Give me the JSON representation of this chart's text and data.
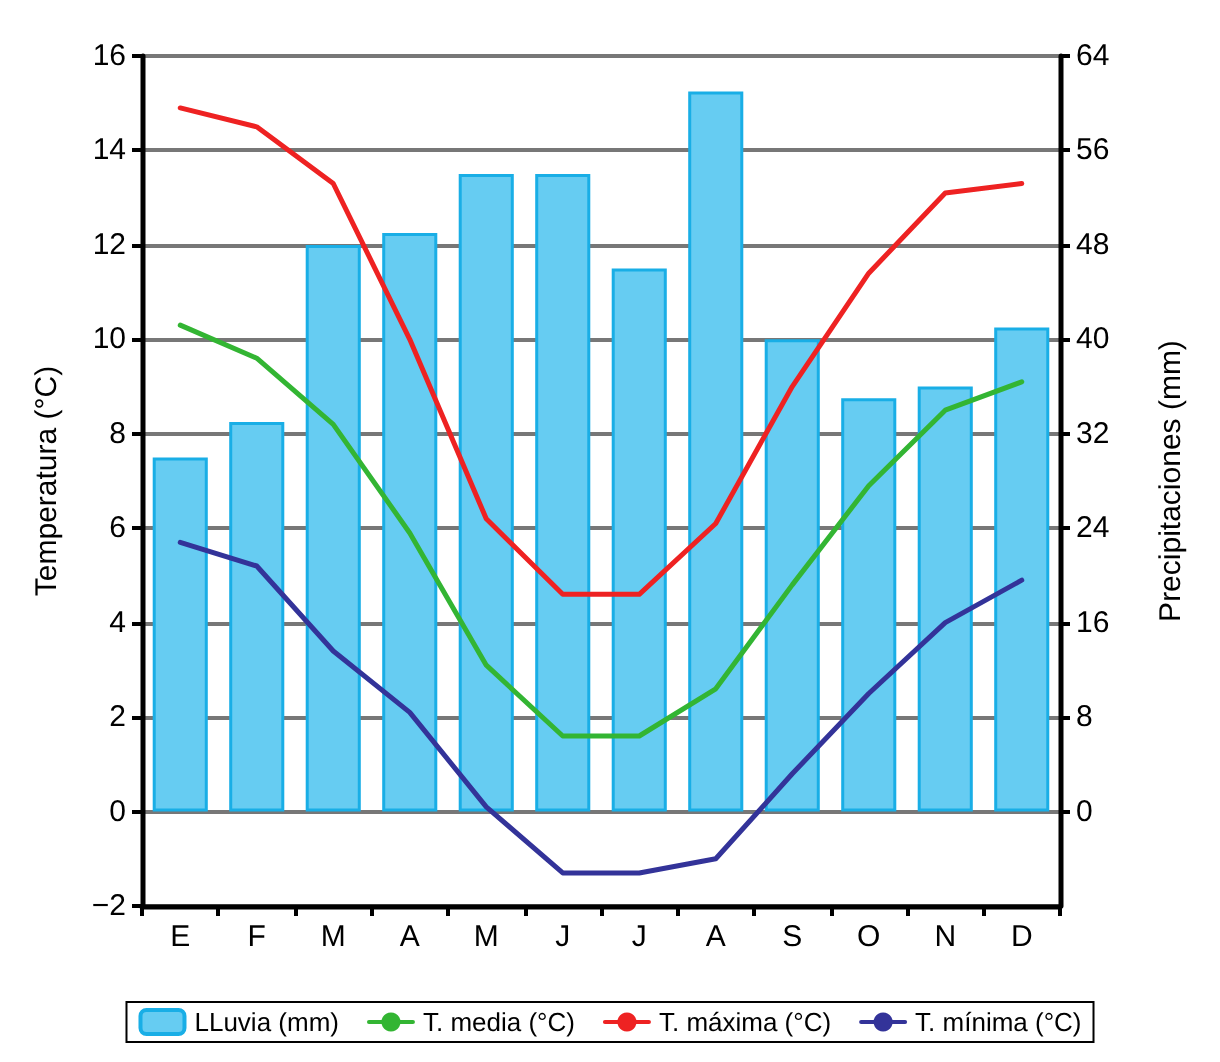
{
  "chart_data": {
    "type": "bar",
    "categories": [
      "E",
      "F",
      "M",
      "A",
      "M",
      "J",
      "J",
      "A",
      "S",
      "O",
      "N",
      "D"
    ],
    "ylabel": "Temperatura (°C)",
    "y2label": "Precipitaciones (mm)",
    "series": [
      {
        "name": "LLuvia (mm)",
        "axis": "y2",
        "color": "#66ccf2",
        "values": [
          30,
          33,
          48,
          49,
          54,
          54,
          46,
          61,
          40,
          35,
          36,
          41
        ]
      },
      {
        "name": "T. media (°C)",
        "type": "line",
        "color": "#33b533",
        "values": [
          10.3,
          9.6,
          8.2,
          5.9,
          3.1,
          1.6,
          1.6,
          2.6,
          4.8,
          6.9,
          8.5,
          9.1
        ]
      },
      {
        "name": "T. máxima (°C)",
        "type": "line",
        "color": "#ee2222",
        "values": [
          14.9,
          14.5,
          13.3,
          10.0,
          6.2,
          4.6,
          4.6,
          6.1,
          9.0,
          11.4,
          13.1,
          13.3
        ]
      },
      {
        "name": "T. mínima (°C)",
        "type": "line",
        "color": "#333399",
        "values": [
          5.7,
          5.2,
          3.4,
          2.1,
          0.1,
          -1.3,
          -1.3,
          -1.0,
          0.8,
          2.5,
          4.0,
          4.9
        ]
      }
    ],
    "ylim": [
      -2,
      16
    ],
    "yticks": [
      -2,
      0,
      2,
      4,
      6,
      8,
      10,
      12,
      14,
      16
    ],
    "y2lim": [
      -8,
      64
    ],
    "y2ticks": [
      0,
      8,
      16,
      24,
      32,
      40,
      48,
      56,
      64
    ],
    "grid": "y",
    "legend": "bottom",
    "marker": "none",
    "line_style": "solid"
  }
}
